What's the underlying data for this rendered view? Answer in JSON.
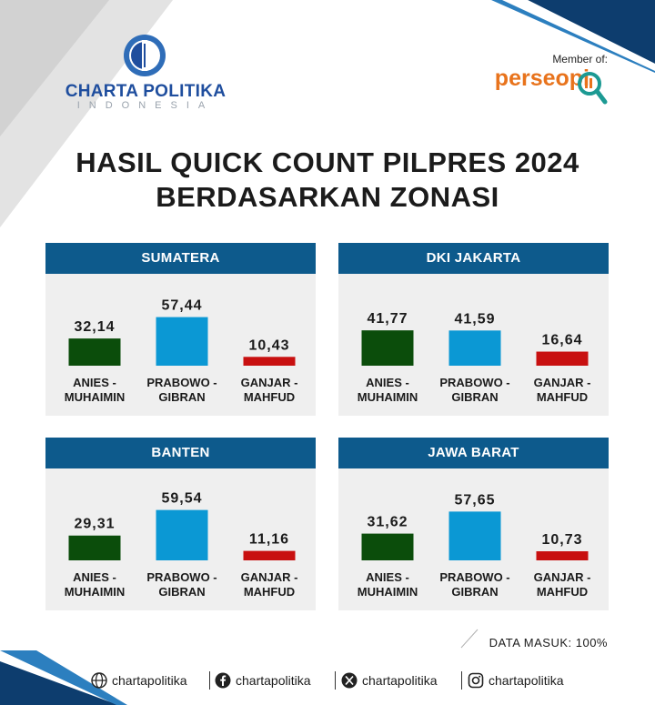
{
  "brand": {
    "name": "CHARTA POLITIKA",
    "sub": "INDONESIA",
    "member_label": "Member of:",
    "member_org": "perseopi",
    "colors": {
      "blue": "#0d5a8c",
      "brand": "#1f4e9e",
      "orange": "#e8731c"
    }
  },
  "title": {
    "line1": "HASIL QUICK COUNT PILPRES 2024",
    "line2": "BERDASARKAN ZONASI"
  },
  "chart_data": [
    {
      "type": "bar",
      "title": "SUMATERA",
      "categories": [
        "ANIES - MUHAIMIN",
        "PRABOWO - GIBRAN",
        "GANJAR - MAHFUD"
      ],
      "values": [
        32.14,
        57.44,
        10.43
      ],
      "labels": [
        "32,14",
        "57,44",
        "10,43"
      ],
      "colors": [
        "#0b4d0b",
        "#0b98d4",
        "#c81010"
      ]
    },
    {
      "type": "bar",
      "title": "DKI JAKARTA",
      "categories": [
        "ANIES - MUHAIMIN",
        "PRABOWO - GIBRAN",
        "GANJAR - MAHFUD"
      ],
      "values": [
        41.77,
        41.59,
        16.64
      ],
      "labels": [
        "41,77",
        "41,59",
        "16,64"
      ],
      "colors": [
        "#0b4d0b",
        "#0b98d4",
        "#c81010"
      ]
    },
    {
      "type": "bar",
      "title": "BANTEN",
      "categories": [
        "ANIES - MUHAIMIN",
        "PRABOWO - GIBRAN",
        "GANJAR - MAHFUD"
      ],
      "values": [
        29.31,
        59.54,
        11.16
      ],
      "labels": [
        "29,31",
        "59,54",
        "11,16"
      ],
      "colors": [
        "#0b4d0b",
        "#0b98d4",
        "#c81010"
      ]
    },
    {
      "type": "bar",
      "title": "JAWA BARAT",
      "categories": [
        "ANIES - MUHAIMIN",
        "PRABOWO - GIBRAN",
        "GANJAR - MAHFUD"
      ],
      "values": [
        31.62,
        57.65,
        10.73
      ],
      "labels": [
        "31,62",
        "57,65",
        "10,73"
      ],
      "colors": [
        "#0b4d0b",
        "#0b98d4",
        "#c81010"
      ]
    }
  ],
  "footer": {
    "data_note": "DATA MASUK: 100%",
    "socials": [
      {
        "icon": "globe-icon",
        "label": "chartapolitika"
      },
      {
        "icon": "facebook-icon",
        "label": "chartapolitika"
      },
      {
        "icon": "x-icon",
        "label": "chartapolitika"
      },
      {
        "icon": "instagram-icon",
        "label": "chartapolitika"
      }
    ]
  }
}
